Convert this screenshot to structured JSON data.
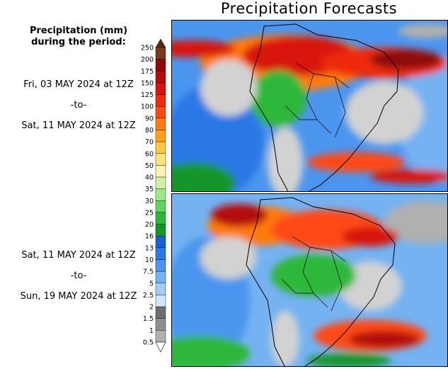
{
  "title": "Precipitation Forecasts",
  "legend": {
    "title_line1": "Precipitation (mm)",
    "title_line2": "during the period:",
    "levels": [
      "250",
      "200",
      "175",
      "150",
      "125",
      "100",
      "90",
      "80",
      "70",
      "60",
      "50",
      "40",
      "35",
      "30",
      "25",
      "20",
      "16",
      "13",
      "10",
      "7.5",
      "5",
      "2.5",
      "2",
      "1.5",
      "1",
      "0.5"
    ],
    "colors": [
      "#7a3a1e",
      "#8c0a0a",
      "#b40c0c",
      "#d8120e",
      "#ee2a10",
      "#ff4a14",
      "#ff7a10",
      "#ffa11a",
      "#ffc840",
      "#ffe27a",
      "#fff3b0",
      "#cdf2a6",
      "#9aeb88",
      "#5fd55f",
      "#2eb83a",
      "#12962a",
      "#1a5fd6",
      "#2b78e6",
      "#4c95ee",
      "#74b2f2",
      "#a4cdf6",
      "#cfe6fb",
      "#6e6e6e",
      "#8e8e8e",
      "#b0b0b0",
      "#d2d2d2"
    ]
  },
  "periods": [
    {
      "start": "Fri, 03 MAY 2024 at 12Z",
      "sep": "-to-",
      "end": "Sat, 11 MAY 2024 at 12Z"
    },
    {
      "start": "Sat, 11 MAY 2024 at 12Z",
      "sep": "-to-",
      "end": "Sun, 19 MAY 2024 at 12Z"
    }
  ]
}
